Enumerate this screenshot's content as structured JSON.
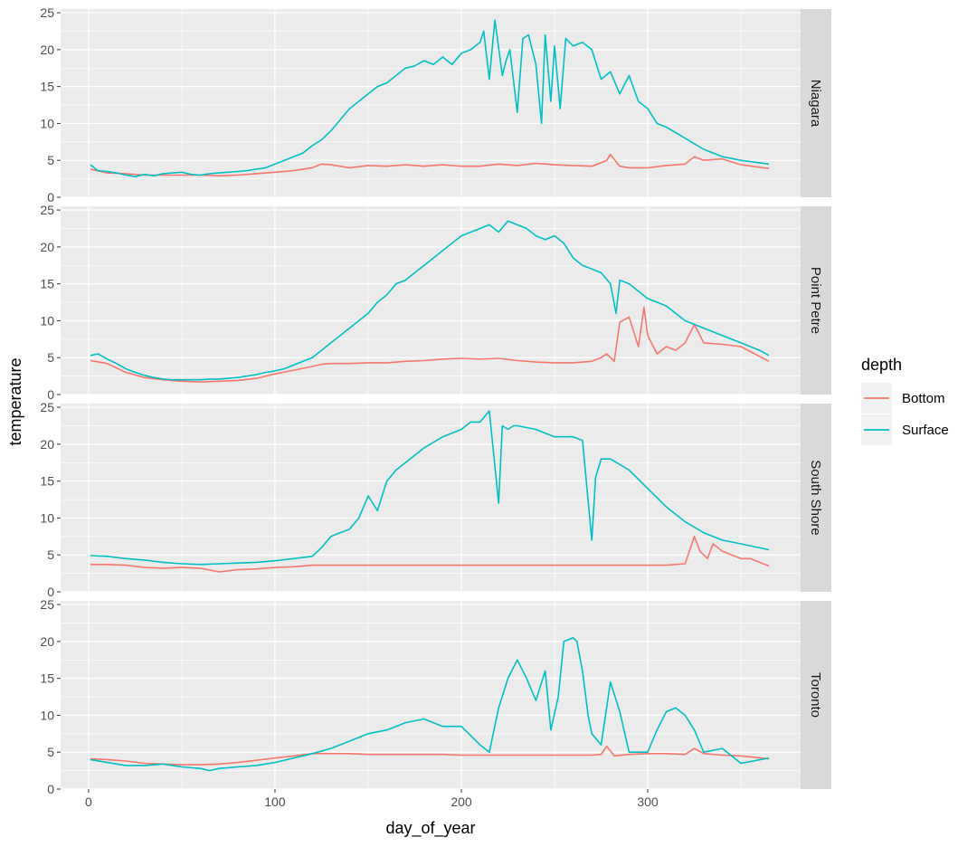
{
  "chart_data": {
    "type": "line",
    "xlabel": "day_of_year",
    "ylabel": "temperature",
    "xlim": [
      -15,
      382
    ],
    "ylim": [
      0,
      25.5
    ],
    "x_ticks": [
      0,
      100,
      200,
      300
    ],
    "y_ticks": [
      0,
      5,
      10,
      15,
      20,
      25
    ],
    "grid": true,
    "legend": {
      "title": "depth",
      "placement": "right",
      "entries": [
        {
          "name": "Bottom",
          "color": "#F8766D"
        },
        {
          "name": "Surface",
          "color": "#00BFC4"
        }
      ]
    },
    "panels": [
      {
        "label": "Niagara",
        "series": [
          {
            "name": "Bottom",
            "color": "#F8766D",
            "x": [
              1,
              10,
              20,
              30,
              40,
              50,
              60,
              70,
              80,
              90,
              100,
              110,
              120,
              125,
              130,
              140,
              150,
              160,
              170,
              180,
              190,
              200,
              210,
              220,
              230,
              240,
              250,
              260,
              270,
              278,
              280,
              285,
              290,
              300,
              310,
              320,
              325,
              330,
              340,
              350,
              365
            ],
            "y": [
              3.8,
              3.3,
              3.2,
              3.0,
              3.0,
              3.0,
              3.0,
              2.9,
              3.0,
              3.2,
              3.4,
              3.6,
              4.0,
              4.5,
              4.4,
              4.0,
              4.3,
              4.2,
              4.4,
              4.2,
              4.4,
              4.2,
              4.2,
              4.5,
              4.3,
              4.6,
              4.4,
              4.3,
              4.2,
              5.0,
              5.8,
              4.2,
              4.0,
              4.0,
              4.3,
              4.5,
              5.5,
              5.0,
              5.2,
              4.4,
              3.9
            ]
          },
          {
            "name": "Surface",
            "color": "#00BFC4",
            "x": [
              1,
              5,
              10,
              15,
              20,
              25,
              30,
              35,
              40,
              45,
              50,
              55,
              60,
              65,
              70,
              75,
              80,
              85,
              90,
              95,
              100,
              105,
              110,
              115,
              120,
              125,
              130,
              135,
              140,
              145,
              150,
              155,
              160,
              165,
              170,
              175,
              180,
              185,
              190,
              195,
              200,
              205,
              210,
              212,
              215,
              218,
              222,
              224,
              226,
              230,
              233,
              236,
              240,
              243,
              245,
              248,
              250,
              253,
              256,
              260,
              265,
              270,
              275,
              280,
              285,
              290,
              295,
              300,
              305,
              310,
              320,
              330,
              340,
              350,
              365
            ],
            "y": [
              4.4,
              3.6,
              3.5,
              3.3,
              3.0,
              2.8,
              3.1,
              2.9,
              3.2,
              3.3,
              3.4,
              3.1,
              3.0,
              3.2,
              3.3,
              3.4,
              3.5,
              3.6,
              3.8,
              4.0,
              4.5,
              5.0,
              5.5,
              6.0,
              7.0,
              7.8,
              9.0,
              10.5,
              12.0,
              13.0,
              14.0,
              15.0,
              15.5,
              16.5,
              17.5,
              17.8,
              18.5,
              18.0,
              19.0,
              18.0,
              19.5,
              20.0,
              21.0,
              22.5,
              16.0,
              24.0,
              16.5,
              18.5,
              20.0,
              11.5,
              21.5,
              22.0,
              18.0,
              10.0,
              22.0,
              13.0,
              20.5,
              12.0,
              21.5,
              20.5,
              21.0,
              20.0,
              16.0,
              17.0,
              14.0,
              16.5,
              13.0,
              12.0,
              10.0,
              9.5,
              8.0,
              6.5,
              5.5,
              5.0,
              4.5
            ]
          }
        ]
      },
      {
        "label": "Point Petre",
        "series": [
          {
            "name": "Bottom",
            "color": "#F8766D",
            "x": [
              1,
              10,
              20,
              30,
              40,
              50,
              60,
              70,
              80,
              90,
              100,
              110,
              120,
              125,
              130,
              140,
              150,
              160,
              170,
              180,
              190,
              200,
              210,
              220,
              230,
              240,
              250,
              260,
              270,
              275,
              278,
              282,
              285,
              290,
              295,
              298,
              300,
              305,
              310,
              315,
              320,
              325,
              330,
              340,
              350,
              365
            ],
            "y": [
              4.6,
              4.2,
              3.0,
              2.3,
              2.0,
              1.8,
              1.7,
              1.8,
              1.9,
              2.2,
              2.8,
              3.3,
              3.8,
              4.1,
              4.2,
              4.2,
              4.3,
              4.3,
              4.5,
              4.6,
              4.8,
              4.9,
              4.8,
              4.9,
              4.6,
              4.4,
              4.3,
              4.3,
              4.5,
              5.0,
              5.5,
              4.5,
              9.8,
              10.5,
              6.5,
              11.8,
              8.0,
              5.5,
              6.5,
              6.0,
              7.0,
              9.5,
              7.0,
              6.8,
              6.5,
              4.5
            ]
          },
          {
            "name": "Surface",
            "color": "#00BFC4",
            "x": [
              1,
              5,
              10,
              15,
              20,
              25,
              30,
              35,
              40,
              45,
              50,
              55,
              60,
              65,
              70,
              75,
              80,
              85,
              90,
              95,
              100,
              105,
              110,
              115,
              120,
              125,
              130,
              135,
              140,
              145,
              150,
              155,
              160,
              165,
              170,
              175,
              180,
              185,
              190,
              195,
              200,
              205,
              210,
              215,
              220,
              225,
              230,
              235,
              240,
              245,
              250,
              255,
              260,
              265,
              270,
              275,
              280,
              283,
              285,
              290,
              295,
              300,
              305,
              310,
              315,
              320,
              330,
              340,
              350,
              360,
              365
            ],
            "y": [
              5.3,
              5.5,
              4.8,
              4.2,
              3.5,
              3.0,
              2.6,
              2.3,
              2.1,
              2.0,
              2.0,
              2.0,
              2.0,
              2.1,
              2.1,
              2.2,
              2.3,
              2.5,
              2.7,
              3.0,
              3.2,
              3.5,
              4.0,
              4.5,
              5.0,
              6.0,
              7.0,
              8.0,
              9.0,
              10.0,
              11.0,
              12.5,
              13.5,
              15.0,
              15.5,
              16.5,
              17.5,
              18.5,
              19.5,
              20.5,
              21.5,
              22.0,
              22.5,
              23.0,
              22.0,
              23.5,
              23.0,
              22.5,
              21.5,
              21.0,
              21.5,
              20.5,
              18.5,
              17.5,
              17.0,
              16.5,
              15.0,
              11.0,
              15.5,
              15.0,
              14.0,
              13.0,
              12.5,
              12.0,
              11.0,
              10.0,
              9.0,
              8.0,
              7.0,
              6.0,
              5.3
            ]
          }
        ]
      },
      {
        "label": "South Shore",
        "series": [
          {
            "name": "Bottom",
            "color": "#F8766D",
            "x": [
              1,
              10,
              20,
              30,
              40,
              50,
              60,
              70,
              80,
              90,
              100,
              110,
              120,
              130,
              140,
              150,
              160,
              170,
              180,
              190,
              200,
              210,
              220,
              230,
              240,
              250,
              260,
              270,
              280,
              290,
              300,
              310,
              320,
              325,
              328,
              332,
              335,
              340,
              345,
              350,
              355,
              365
            ],
            "y": [
              3.7,
              3.7,
              3.6,
              3.3,
              3.2,
              3.3,
              3.2,
              2.7,
              3.0,
              3.1,
              3.3,
              3.4,
              3.6,
              3.6,
              3.6,
              3.6,
              3.6,
              3.6,
              3.6,
              3.6,
              3.6,
              3.6,
              3.6,
              3.6,
              3.6,
              3.6,
              3.6,
              3.6,
              3.6,
              3.6,
              3.6,
              3.6,
              3.8,
              7.5,
              5.5,
              4.5,
              6.5,
              5.5,
              5.0,
              4.5,
              4.5,
              3.5
            ]
          },
          {
            "name": "Surface",
            "color": "#00BFC4",
            "x": [
              1,
              10,
              20,
              30,
              40,
              50,
              60,
              70,
              80,
              90,
              100,
              110,
              120,
              125,
              130,
              140,
              145,
              150,
              155,
              160,
              165,
              170,
              180,
              190,
              200,
              205,
              210,
              215,
              220,
              222,
              225,
              228,
              230,
              240,
              250,
              260,
              265,
              270,
              272,
              275,
              280,
              290,
              300,
              310,
              320,
              330,
              340,
              350,
              365
            ],
            "y": [
              4.9,
              4.8,
              4.5,
              4.3,
              4.0,
              3.8,
              3.7,
              3.8,
              3.9,
              4.0,
              4.2,
              4.5,
              4.8,
              6.0,
              7.5,
              8.5,
              10.0,
              13.0,
              11.0,
              15.0,
              16.5,
              17.5,
              19.5,
              21.0,
              22.0,
              23.0,
              23.0,
              24.5,
              12.0,
              22.5,
              22.0,
              22.5,
              22.5,
              22.0,
              21.0,
              21.0,
              20.5,
              7.0,
              15.5,
              18.0,
              18.0,
              16.5,
              14.0,
              11.5,
              9.5,
              8.0,
              7.0,
              6.5,
              5.7
            ]
          }
        ]
      },
      {
        "label": "Toronto",
        "series": [
          {
            "name": "Bottom",
            "color": "#F8766D",
            "x": [
              1,
              10,
              20,
              30,
              40,
              50,
              60,
              70,
              80,
              90,
              100,
              110,
              120,
              130,
              140,
              150,
              160,
              170,
              180,
              190,
              200,
              210,
              220,
              230,
              240,
              250,
              260,
              270,
              275,
              278,
              282,
              290,
              300,
              310,
              320,
              325,
              330,
              340,
              350,
              365
            ],
            "y": [
              4.1,
              4.0,
              3.8,
              3.5,
              3.4,
              3.3,
              3.3,
              3.4,
              3.6,
              3.9,
              4.2,
              4.5,
              4.8,
              4.8,
              4.8,
              4.7,
              4.7,
              4.7,
              4.7,
              4.7,
              4.6,
              4.6,
              4.6,
              4.6,
              4.6,
              4.6,
              4.6,
              4.6,
              4.7,
              5.8,
              4.5,
              4.7,
              4.8,
              4.8,
              4.7,
              5.5,
              4.8,
              4.6,
              4.5,
              4.1
            ]
          },
          {
            "name": "Surface",
            "color": "#00BFC4",
            "x": [
              1,
              10,
              20,
              30,
              40,
              50,
              60,
              65,
              70,
              80,
              90,
              100,
              110,
              120,
              130,
              140,
              150,
              160,
              170,
              180,
              190,
              200,
              210,
              215,
              220,
              225,
              230,
              235,
              240,
              245,
              248,
              252,
              255,
              260,
              262,
              265,
              268,
              270,
              275,
              280,
              285,
              290,
              295,
              300,
              305,
              310,
              315,
              320,
              325,
              330,
              340,
              350,
              365
            ],
            "y": [
              4.0,
              3.6,
              3.2,
              3.2,
              3.4,
              3.0,
              2.8,
              2.5,
              2.8,
              3.0,
              3.2,
              3.6,
              4.2,
              4.8,
              5.5,
              6.5,
              7.5,
              8.0,
              9.0,
              9.5,
              8.5,
              8.5,
              6.0,
              5.0,
              11.0,
              15.0,
              17.5,
              15.0,
              12.0,
              16.0,
              8.0,
              12.5,
              20.0,
              20.5,
              20.0,
              16.0,
              10.0,
              7.5,
              6.0,
              14.5,
              10.5,
              5.0,
              5.0,
              5.0,
              8.0,
              10.5,
              11.0,
              10.0,
              8.0,
              5.0,
              5.5,
              3.5,
              4.2
            ]
          }
        ]
      }
    ]
  }
}
